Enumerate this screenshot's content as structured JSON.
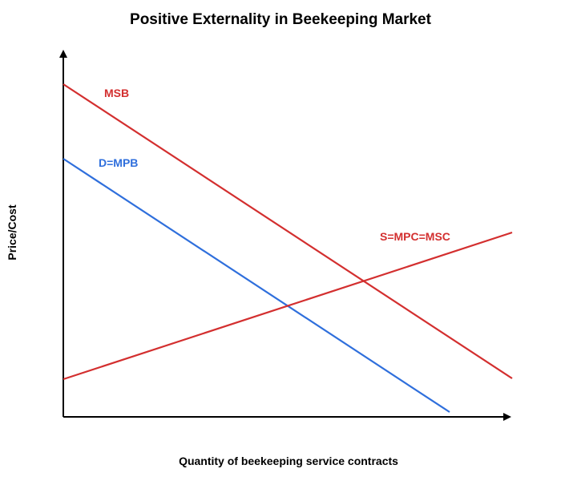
{
  "chart_data": {
    "type": "line",
    "title": "Positive Externality in Beekeeping Market",
    "xlabel": "Quantity of beekeeping service contracts",
    "ylabel": "Price/Cost",
    "grid": false,
    "legend": "none",
    "axis_ticks": "none",
    "series": [
      {
        "id": "msb",
        "name": "MSB",
        "color": "#d32f2f",
        "points": [
          [
            0,
            415
          ],
          [
            560,
            48
          ]
        ]
      },
      {
        "id": "mpb",
        "name": "D=MPB",
        "color": "#2f6fdc",
        "points": [
          [
            0,
            322
          ],
          [
            482,
            6
          ]
        ]
      },
      {
        "id": "supply",
        "name": "S=MPC=MSC",
        "color": "#d32f2f",
        "points": [
          [
            0,
            47
          ],
          [
            560,
            230
          ]
        ]
      }
    ]
  }
}
